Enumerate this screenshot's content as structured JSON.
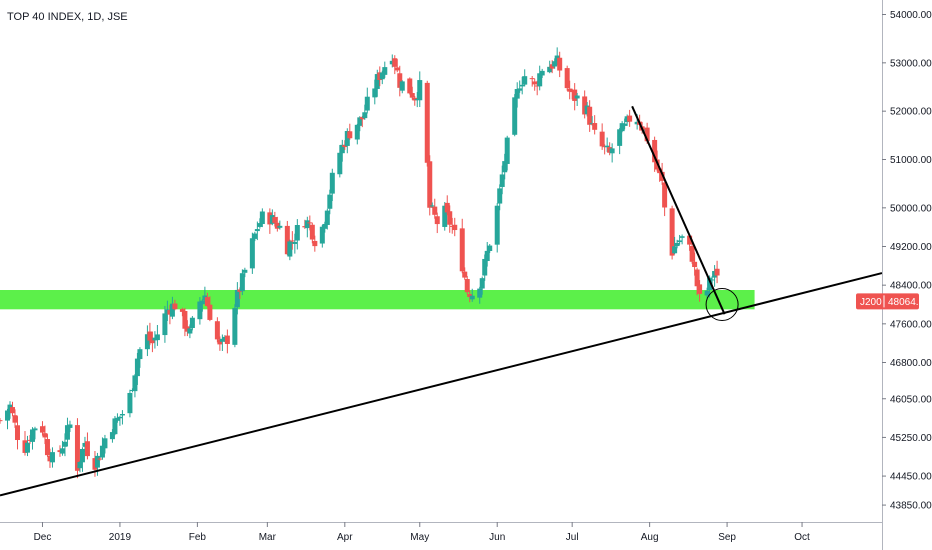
{
  "chart_data": {
    "type": "candlestick",
    "title": "TOP 40 INDEX, 1D, JSE",
    "symbol_label": "J200",
    "last_price_label": "48064.12",
    "ylim": [
      43500,
      54300
    ],
    "y_ticks": [
      {
        "value": 54000,
        "label": "54000.00"
      },
      {
        "value": 53000,
        "label": "53000.00"
      },
      {
        "value": 52000,
        "label": "52000.00"
      },
      {
        "value": 51000,
        "label": "51000.00"
      },
      {
        "value": 50000,
        "label": "50000.00"
      },
      {
        "value": 49200,
        "label": "49200.00"
      },
      {
        "value": 48400,
        "label": "48400.00"
      },
      {
        "value": 47600,
        "label": "47600.00"
      },
      {
        "value": 46800,
        "label": "46800.00"
      },
      {
        "value": 46050,
        "label": "46050.00"
      },
      {
        "value": 45250,
        "label": "45250.00"
      },
      {
        "value": 44450,
        "label": "44450.00"
      },
      {
        "value": 43850,
        "label": "43850.00"
      }
    ],
    "x_ticks": [
      {
        "day": 0,
        "label": "Dec"
      },
      {
        "day": 31,
        "label": "2019"
      },
      {
        "day": 62,
        "label": "Feb"
      },
      {
        "day": 90,
        "label": "Mar"
      },
      {
        "day": 121,
        "label": "Apr"
      },
      {
        "day": 151,
        "label": "May"
      },
      {
        "day": 182,
        "label": "Jun"
      },
      {
        "day": 212,
        "label": "Jul"
      },
      {
        "day": 243,
        "label": "Aug"
      },
      {
        "day": 274,
        "label": "Sep"
      },
      {
        "day": 304,
        "label": "Oct"
      }
    ],
    "day_range": [
      -17,
      336
    ],
    "support_zone": {
      "from_day": -17,
      "to_day": 285,
      "low": 47900,
      "high": 48300,
      "color": "#5cf04a"
    },
    "trendlines": [
      {
        "name": "rising-support-line",
        "from": {
          "day": -17,
          "value": 44050
        },
        "to": {
          "day": 336,
          "value": 48650
        }
      },
      {
        "name": "descending-trendline",
        "from": {
          "day": 236,
          "value": 52100
        },
        "to": {
          "day": 273,
          "value": 47800
        }
      }
    ],
    "circle": {
      "day": 272,
      "value": 48000
    },
    "colors": {
      "up": "#26a69a",
      "down": "#ef5350",
      "support": "#5cf04a",
      "price_tag": "#ef5350"
    },
    "anchor_closes": [
      [
        -17,
        45600
      ],
      [
        -13,
        45900
      ],
      [
        -10,
        45300
      ],
      [
        -7,
        45050
      ],
      [
        -4,
        45400
      ],
      [
        -1,
        45650
      ],
      [
        2,
        45000
      ],
      [
        5,
        44700
      ],
      [
        8,
        45100
      ],
      [
        11,
        45500
      ],
      [
        14,
        44650
      ],
      [
        17,
        45150
      ],
      [
        20,
        44650
      ],
      [
        23,
        44900
      ],
      [
        26,
        45400
      ],
      [
        29,
        45550
      ],
      [
        32,
        45750
      ],
      [
        35,
        46100
      ],
      [
        38,
        46900
      ],
      [
        41,
        47400
      ],
      [
        44,
        47200
      ],
      [
        47,
        47500
      ],
      [
        50,
        47900
      ],
      [
        53,
        48000
      ],
      [
        56,
        47700
      ],
      [
        59,
        47400
      ],
      [
        62,
        48000
      ],
      [
        65,
        48200
      ],
      [
        68,
        47600
      ],
      [
        71,
        47100
      ],
      [
        74,
        47300
      ],
      [
        77,
        48000
      ],
      [
        80,
        48500
      ],
      [
        83,
        49100
      ],
      [
        86,
        49600
      ],
      [
        89,
        49900
      ],
      [
        92,
        49750
      ],
      [
        95,
        49600
      ],
      [
        98,
        49200
      ],
      [
        101,
        49400
      ],
      [
        104,
        49800
      ],
      [
        107,
        49650
      ],
      [
        110,
        49200
      ],
      [
        113,
        49800
      ],
      [
        116,
        50600
      ],
      [
        119,
        51150
      ],
      [
        122,
        51500
      ],
      [
        125,
        51700
      ],
      [
        128,
        51850
      ],
      [
        131,
        52300
      ],
      [
        134,
        52650
      ],
      [
        137,
        52950
      ],
      [
        140,
        53200
      ],
      [
        143,
        52600
      ],
      [
        146,
        52500
      ],
      [
        149,
        52300
      ],
      [
        152,
        52600
      ],
      [
        155,
        50000
      ],
      [
        158,
        49700
      ],
      [
        161,
        49900
      ],
      [
        164,
        49600
      ],
      [
        167,
        49100
      ],
      [
        170,
        48300
      ],
      [
        173,
        48200
      ],
      [
        176,
        48600
      ],
      [
        179,
        49300
      ],
      [
        182,
        50000
      ],
      [
        185,
        51000
      ],
      [
        188,
        51900
      ],
      [
        191,
        52600
      ],
      [
        194,
        52800
      ],
      [
        197,
        52500
      ],
      [
        200,
        52900
      ],
      [
        203,
        52950
      ],
      [
        206,
        53000
      ],
      [
        209,
        52600
      ],
      [
        212,
        52300
      ],
      [
        215,
        52250
      ],
      [
        218,
        52000
      ],
      [
        221,
        51500
      ],
      [
        224,
        51250
      ],
      [
        227,
        51100
      ],
      [
        230,
        51500
      ],
      [
        233,
        51650
      ],
      [
        236,
        51950
      ],
      [
        239,
        51800
      ],
      [
        242,
        51450
      ],
      [
        245,
        50950
      ],
      [
        248,
        50500
      ],
      [
        251,
        49000
      ],
      [
        254,
        49300
      ],
      [
        257,
        49400
      ],
      [
        260,
        49000
      ],
      [
        263,
        48100
      ],
      [
        266,
        48300
      ],
      [
        269,
        48700
      ],
      [
        272,
        48064
      ]
    ]
  }
}
